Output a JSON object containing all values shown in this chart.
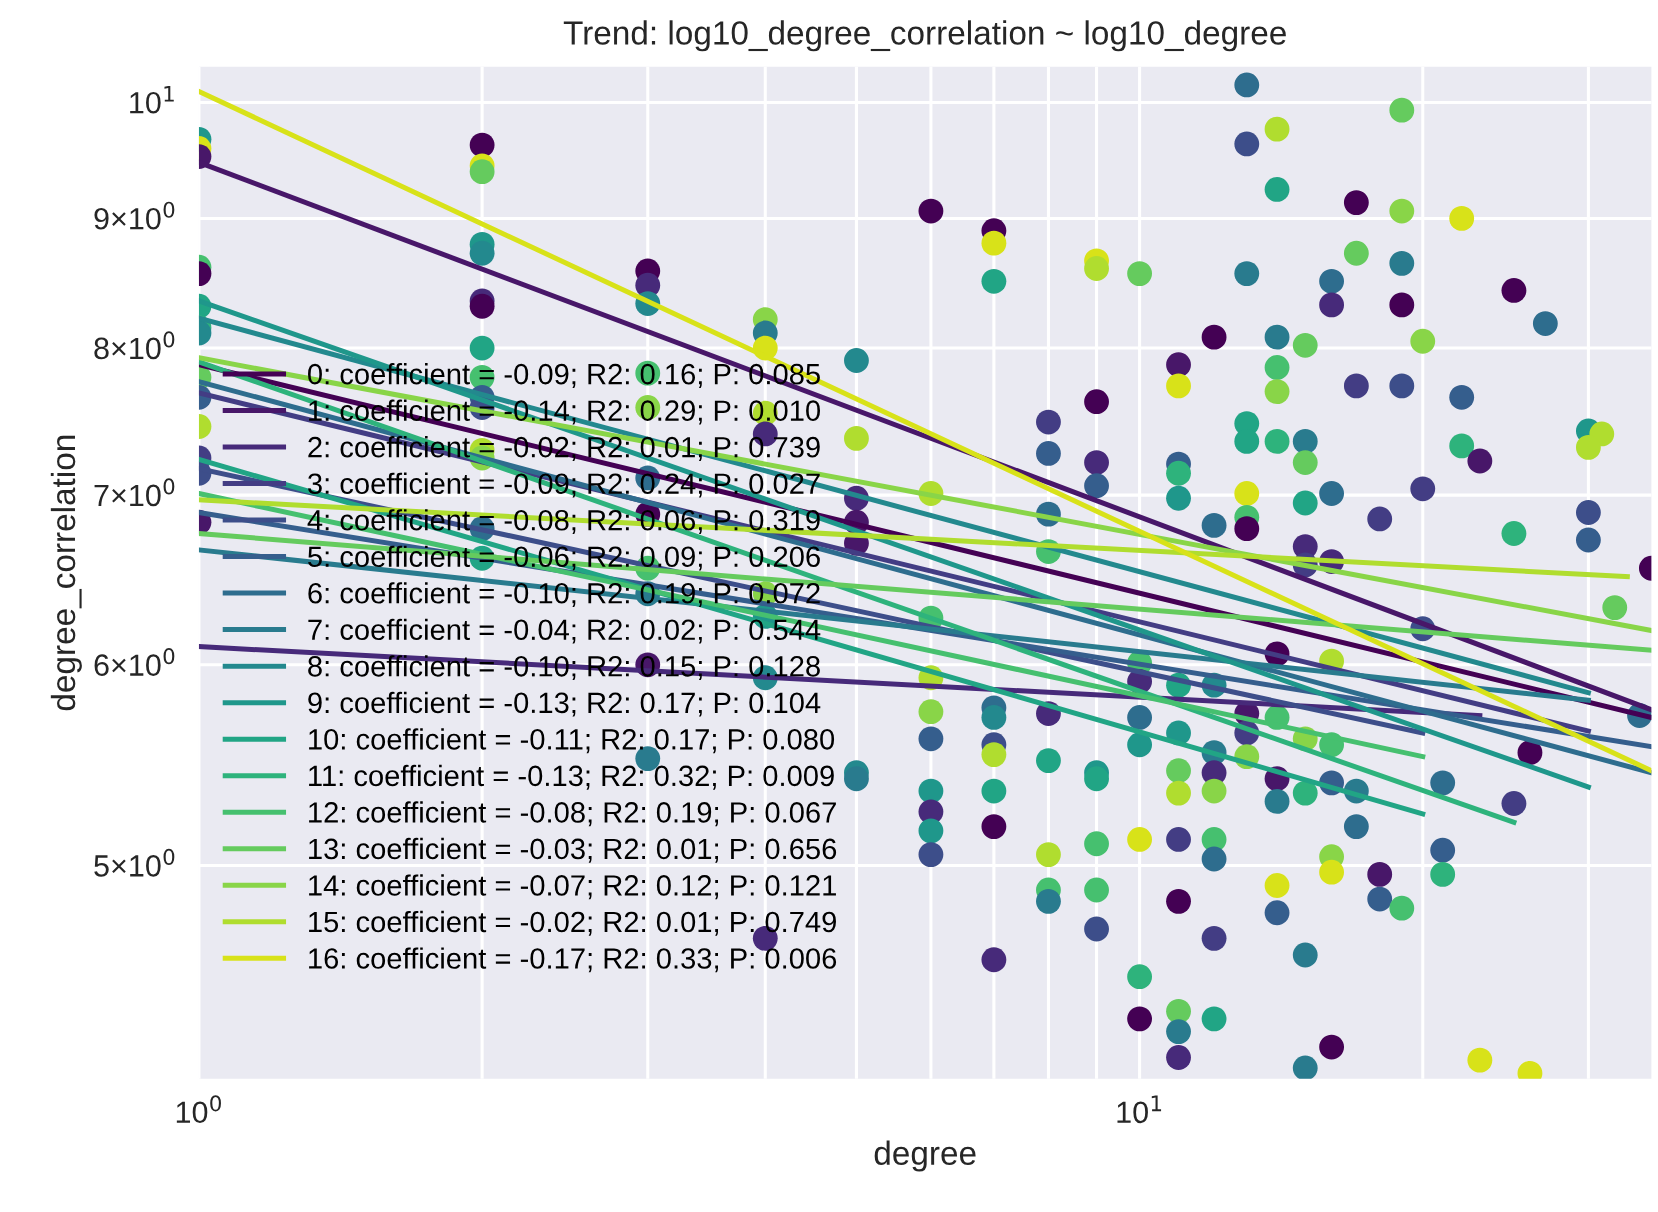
{
  "chart_data": {
    "type": "line",
    "title": "Trend: log10_degree_correlation ~ log10_degree",
    "xlabel": "degree",
    "ylabel": "degree_correlation",
    "log": "xy",
    "grid": true,
    "legend": "left",
    "line_style": "solid",
    "xlim": [
      1,
      35
    ],
    "ylim": [
      4.12,
      10.33
    ],
    "xticks": [
      {
        "value": 1,
        "label": "10$^{0}$"
      },
      {
        "value": 2,
        "label": null
      },
      {
        "value": 3,
        "label": null
      },
      {
        "value": 4,
        "label": null
      },
      {
        "value": 5,
        "label": null
      },
      {
        "value": 6,
        "label": null
      },
      {
        "value": 7,
        "label": null
      },
      {
        "value": 8,
        "label": null
      },
      {
        "value": 9,
        "label": null
      },
      {
        "value": 10,
        "label": "10$^{1}$"
      },
      {
        "value": 20,
        "label": null
      },
      {
        "value": 30,
        "label": null
      }
    ],
    "yticks": [
      {
        "value": 5,
        "label": "5×10$^{0}$"
      },
      {
        "value": 6,
        "label": "6×10$^{0}$"
      },
      {
        "value": 7,
        "label": "7×10$^{0}$"
      },
      {
        "value": 8,
        "label": "8×10$^{0}$"
      },
      {
        "value": 9,
        "label": "9×10$^{0}$"
      },
      {
        "value": 10,
        "label": "10$^{1}$"
      }
    ],
    "series": [
      {
        "type": "scatter",
        "marker": "circle",
        "x": [
          1,
          1,
          1,
          1,
          1,
          1,
          1,
          1,
          1,
          1,
          1,
          1,
          1,
          1,
          2,
          2,
          2,
          2,
          2,
          2,
          2,
          2,
          2,
          2,
          2,
          2,
          2,
          2,
          2,
          3,
          3,
          3,
          3,
          3,
          3,
          3,
          3,
          3,
          3,
          3,
          4,
          4,
          4,
          4,
          4,
          4,
          4,
          4,
          4,
          5,
          5,
          5,
          5,
          5,
          5,
          5,
          6,
          6,
          6,
          6,
          6,
          6,
          6,
          6,
          6,
          6,
          7,
          7,
          7,
          7,
          7,
          7,
          7,
          7,
          7,
          7,
          8,
          8,
          8,
          8,
          8,
          8,
          8,
          8,
          8,
          9,
          9,
          9,
          9,
          9,
          9,
          9,
          9,
          9,
          9,
          10,
          10,
          10,
          10,
          10,
          10,
          10,
          10,
          11,
          11,
          11,
          11,
          11,
          11,
          11,
          11,
          11,
          11,
          11,
          11,
          11,
          11,
          12,
          12,
          12,
          12,
          12,
          12,
          12,
          12,
          12,
          12,
          13,
          13,
          13,
          13,
          13,
          13,
          13,
          13,
          13,
          13,
          13,
          14,
          14,
          14,
          14,
          14,
          14,
          14,
          14,
          14,
          14,
          14,
          14,
          15,
          15,
          15,
          15,
          15,
          15,
          15,
          15,
          15,
          15,
          16,
          16,
          16,
          16,
          16,
          16,
          16,
          16,
          16,
          16,
          17,
          17,
          17,
          17,
          17,
          18,
          18,
          18,
          19,
          19,
          19,
          19,
          19,
          19,
          20,
          20,
          20,
          22,
          22,
          22,
          21,
          21,
          21,
          23,
          23,
          25,
          25,
          25,
          26,
          26,
          27,
          30,
          31,
          30,
          30,
          30,
          32,
          34,
          35
        ],
        "values": [
          9.67,
          9.59,
          9.52,
          8.61,
          8.56,
          8.31,
          8.15,
          8.11,
          7.79,
          7.65,
          7.45,
          7.24,
          7.14,
          6.83,
          9.62,
          9.44,
          9.39,
          8.79,
          8.72,
          8.35,
          8.31,
          8.0,
          7.79,
          7.65,
          7.58,
          7.29,
          7.24,
          6.79,
          6.61,
          8.58,
          8.47,
          8.33,
          7.82,
          7.58,
          7.11,
          6.88,
          6.55,
          6.4,
          6.0,
          5.51,
          8.21,
          8.11,
          8.0,
          7.54,
          7.4,
          6.4,
          6.27,
          5.93,
          4.68,
          7.91,
          7.37,
          6.98,
          6.83,
          6.7,
          5.44,
          5.41,
          9.06,
          7.01,
          6.26,
          5.93,
          5.75,
          5.61,
          5.35,
          5.25,
          5.16,
          5.05,
          8.9,
          8.8,
          8.5,
          5.77,
          5.72,
          5.58,
          5.53,
          5.35,
          5.18,
          4.59,
          7.48,
          7.27,
          6.88,
          6.65,
          5.74,
          5.5,
          5.05,
          4.89,
          4.84,
          8.66,
          8.6,
          7.62,
          7.21,
          7.06,
          5.44,
          5.41,
          5.1,
          4.89,
          4.72,
          8.56,
          6.01,
          5.91,
          5.72,
          5.58,
          5.12,
          4.52,
          4.35,
          7.88,
          7.73,
          7.2,
          7.14,
          6.98,
          5.89,
          5.64,
          5.45,
          5.34,
          5.12,
          4.84,
          4.38,
          4.3,
          4.2,
          8.08,
          6.81,
          5.89,
          5.54,
          5.44,
          5.35,
          5.12,
          5.03,
          4.68,
          4.35,
          10.16,
          9.63,
          8.56,
          7.47,
          7.35,
          7.01,
          6.86,
          6.79,
          5.74,
          5.64,
          5.52,
          9.76,
          9.24,
          8.08,
          7.86,
          7.69,
          7.35,
          6.06,
          5.72,
          5.41,
          5.3,
          4.91,
          4.79,
          8.02,
          7.35,
          7.21,
          6.95,
          6.68,
          6.57,
          5.61,
          5.34,
          4.61,
          4.16,
          8.5,
          8.32,
          7.01,
          6.59,
          6.02,
          5.58,
          5.39,
          5.04,
          4.97,
          4.24,
          9.13,
          8.72,
          7.73,
          5.35,
          5.18,
          6.85,
          4.96,
          4.85,
          9.93,
          9.06,
          8.64,
          8.32,
          7.73,
          4.81,
          8.05,
          7.04,
          6.2,
          9.0,
          7.65,
          7.32,
          5.39,
          5.07,
          4.96,
          4.19,
          7.22,
          8.43,
          6.76,
          5.29,
          4.14,
          5.54,
          8.18,
          7.42,
          7.4,
          7.31,
          6.89,
          6.72,
          6.32,
          5.73,
          6.55
        ],
        "colors": [
          "#1f978b",
          "#d8e219",
          "#481769",
          "#46c06f",
          "#440154",
          "#21a585",
          "#2eb37c",
          "#23898e",
          "#65cb5e",
          "#355e8d",
          "#b0dd2f",
          "#433d84",
          "#3d4e8a",
          "#481769",
          "#440154",
          "#d8e219",
          "#65cb5e",
          "#1f978b",
          "#23898e",
          "#472a7a",
          "#440154",
          "#21a585",
          "#46c06f",
          "#355e8d",
          "#3d4e8a",
          "#b0dd2f",
          "#89d548",
          "#2e6d8e",
          "#21a585",
          "#440154",
          "#472a7a",
          "#23898e",
          "#46c06f",
          "#89d548",
          "#2e6d8e",
          "#440154",
          "#46c06f",
          "#297b8e",
          "#481769",
          "#297b8e",
          "#89d548",
          "#297b8e",
          "#d8e219",
          "#b0dd2f",
          "#472a7a",
          "#89d548",
          "#1f978b",
          "#23898e",
          "#472a7a",
          "#23898e",
          "#b0dd2f",
          "#472a7a",
          "#481769",
          "#481769",
          "#23898e",
          "#297b8e",
          "#440154",
          "#b0dd2f",
          "#46c06f",
          "#b0dd2f",
          "#89d548",
          "#355e8d",
          "#1f978b",
          "#472a7a",
          "#1f978b",
          "#3d4e8a",
          "#440154",
          "#d8e219",
          "#21a585",
          "#2e6d8e",
          "#23898e",
          "#3d4e8a",
          "#b0dd2f",
          "#21a585",
          "#440154",
          "#472a7a",
          "#433d84",
          "#355e8d",
          "#2e6d8e",
          "#46c06f",
          "#472a7a",
          "#21a585",
          "#b0dd2f",
          "#46c06f",
          "#297b8e",
          "#d8e219",
          "#b0dd2f",
          "#440154",
          "#472a7a",
          "#355e8d",
          "#1f978b",
          "#21a585",
          "#46c06f",
          "#46c06f",
          "#3d4e8a",
          "#65cb5e",
          "#46c06f",
          "#472a7a",
          "#2e6d8e",
          "#1f978b",
          "#d8e219",
          "#2eb37c",
          "#440154",
          "#481769",
          "#d8e219",
          "#355e8d",
          "#2eb37c",
          "#1f978b",
          "#21a585",
          "#1f978b",
          "#65cb5e",
          "#b0dd2f",
          "#433d84",
          "#440154",
          "#65cb5e",
          "#297b8e",
          "#472a7a",
          "#440154",
          "#2e6d8e",
          "#23898e",
          "#297b8e",
          "#472a7a",
          "#89d548",
          "#46c06f",
          "#2e6d8e",
          "#433d84",
          "#21a585",
          "#2e6d8e",
          "#3d4e8a",
          "#297b8e",
          "#21a585",
          "#21a585",
          "#d8e219",
          "#46c06f",
          "#440154",
          "#481769",
          "#433d84",
          "#89d548",
          "#b0dd2f",
          "#21a585",
          "#297b8e",
          "#46c06f",
          "#89d548",
          "#2eb37c",
          "#440154",
          "#46c06f",
          "#481769",
          "#297b8e",
          "#d8e219",
          "#355e8d",
          "#65cb5e",
          "#297b8e",
          "#65cb5e",
          "#21a585",
          "#472a7a",
          "#433d84",
          "#89d548",
          "#2eb37c",
          "#297b8e",
          "#297b8e",
          "#2e6d8e",
          "#472a7a",
          "#2e6d8e",
          "#472a7a",
          "#b0dd2f",
          "#46c06f",
          "#355e8d",
          "#89d548",
          "#d8e219",
          "#440154",
          "#440154",
          "#65cb5e",
          "#433d84",
          "#297b8e",
          "#2e6d8e",
          "#433d84",
          "#481769",
          "#355e8d",
          "#65cb5e",
          "#89d548",
          "#297b8e",
          "#440154",
          "#3d4e8a",
          "#46c06f",
          "#89d548",
          "#433d84",
          "#3d4e8a",
          "#d8e219",
          "#355e8d",
          "#2eb37c",
          "#2e6d8e",
          "#355e8d",
          "#2eb37c",
          "#d8e219",
          "#481769",
          "#440154",
          "#2eb37c",
          "#433d84",
          "#d8e219",
          "#440154",
          "#2e6d8e",
          "#1f978b",
          "#b0dd2f",
          "#b0dd2f",
          "#3d4e8a",
          "#355e8d",
          "#65cb5e",
          "#2e6d8e",
          "#440154"
        ]
      },
      {
        "name": "0: coefficient = -0.09; R2: 0.16; P: 0.085",
        "color": "#440154",
        "x": [
          1,
          35
        ],
        "values": [
          7.88,
          5.72
        ]
      },
      {
        "name": "1: coefficient = -0.14; R2: 0.29; P: 0.010",
        "color": "#481769",
        "x": [
          1,
          35
        ],
        "values": [
          9.47,
          5.76
        ]
      },
      {
        "name": "2: coefficient = -0.02; R2: 0.01; P: 0.739",
        "color": "#472a7a",
        "x": [
          1,
          23
        ],
        "values": [
          6.1,
          5.73
        ]
      },
      {
        "name": "3: coefficient = -0.09; R2: 0.24; P: 0.027",
        "color": "#433d84",
        "x": [
          1,
          30
        ],
        "values": [
          7.68,
          5.65
        ]
      },
      {
        "name": "4: coefficient = -0.08; R2: 0.06; P: 0.319",
        "color": "#3d4e8a",
        "x": [
          1,
          20
        ],
        "values": [
          7.17,
          5.64
        ]
      },
      {
        "name": "5: coefficient = -0.06; R2: 0.09; P: 0.206",
        "color": "#355e8d",
        "x": [
          1,
          35
        ],
        "values": [
          6.89,
          5.57
        ]
      },
      {
        "name": "6: coefficient = -0.10; R2: 0.19; P: 0.072",
        "color": "#2e6d8e",
        "x": [
          1,
          35
        ],
        "values": [
          7.76,
          5.44
        ]
      },
      {
        "name": "7: coefficient = -0.04; R2: 0.02; P: 0.544",
        "color": "#297b8e",
        "x": [
          1,
          30
        ],
        "values": [
          6.66,
          5.81
        ]
      },
      {
        "name": "8: coefficient = -0.10; R2: 0.15; P: 0.128",
        "color": "#23898e",
        "x": [
          1,
          30
        ],
        "values": [
          8.22,
          5.85
        ]
      },
      {
        "name": "9: coefficient = -0.13; R2: 0.17; P: 0.104",
        "color": "#1f978b",
        "x": [
          1,
          30
        ],
        "values": [
          8.35,
          5.37
        ]
      },
      {
        "name": "10: coefficient = -0.11; R2: 0.17; P: 0.080",
        "color": "#21a585",
        "x": [
          1,
          20
        ],
        "values": [
          7.23,
          5.24
        ]
      },
      {
        "name": "11: coefficient = -0.13; R2: 0.32; P: 0.009",
        "color": "#2eb37c",
        "x": [
          1,
          25
        ],
        "values": [
          7.9,
          5.2
        ]
      },
      {
        "name": "12: coefficient = -0.08; R2: 0.19; P: 0.067",
        "color": "#46c06f",
        "x": [
          1,
          20
        ],
        "values": [
          7.01,
          5.52
        ]
      },
      {
        "name": "13: coefficient = -0.03; R2: 0.01; P: 0.656",
        "color": "#65cb5e",
        "x": [
          1,
          35
        ],
        "values": [
          6.76,
          6.08
        ]
      },
      {
        "name": "14: coefficient = -0.07; R2: 0.12; P: 0.121",
        "color": "#89d548",
        "x": [
          1,
          35
        ],
        "values": [
          7.93,
          6.19
        ]
      },
      {
        "name": "15: coefficient = -0.02; R2: 0.01; P: 0.749",
        "color": "#b0dd2f",
        "x": [
          1,
          33
        ],
        "values": [
          6.97,
          6.5
        ]
      },
      {
        "name": "16: coefficient = -0.17; R2: 0.33; P: 0.006",
        "color": "#d8e219",
        "x": [
          1,
          35
        ],
        "values": [
          10.1,
          5.45
        ]
      }
    ]
  }
}
